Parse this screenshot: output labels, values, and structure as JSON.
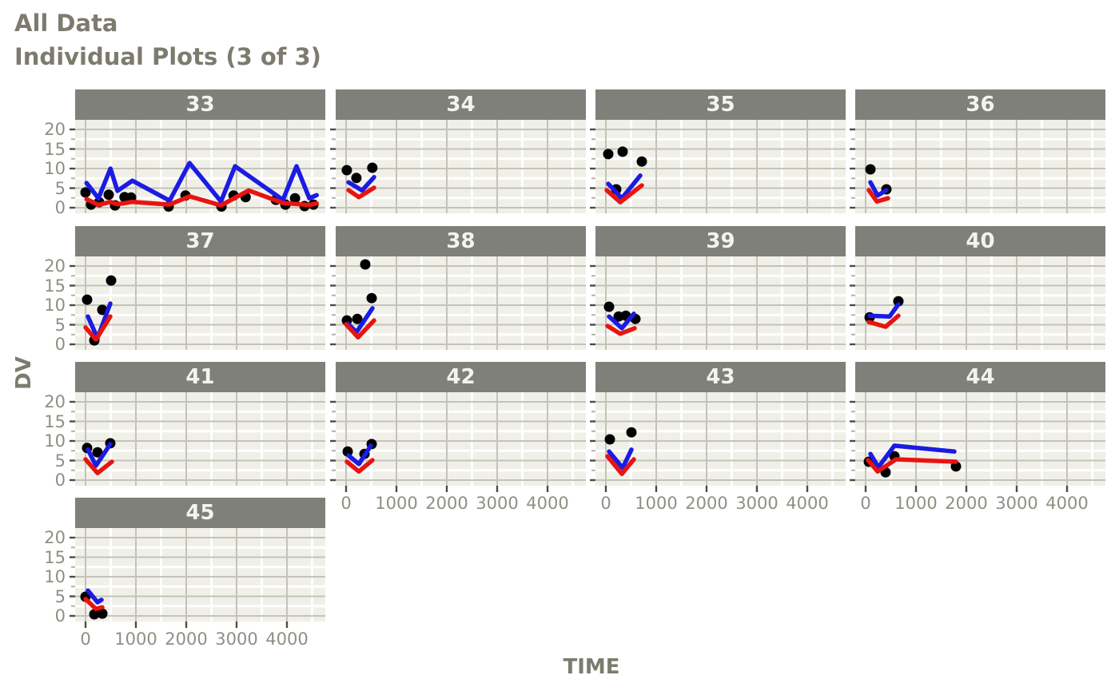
{
  "title": "All Data",
  "subtitle": "Individual Plots (3 of 3)",
  "x_axis_label": "TIME",
  "y_axis_label": "DV",
  "colors": {
    "title_text": "#7c7b6e",
    "strip_fill": "#80807a",
    "strip_text": "#f4f4ee",
    "panel_background": "#f0f0e9",
    "grid_major": "#c3c3ba",
    "grid_minor": "#ffffff",
    "tick_mark": "#4c4c45",
    "tick_label": "#8f8f85",
    "observed_points": "#000000",
    "individual_prediction_line": "#1b1be4",
    "population_prediction_line": "#e81410"
  },
  "chart_data": {
    "type": "line",
    "description": "Faceted individual plots of DV vs TIME: black dots = observed data, blue line = individual prediction, red line = population prediction",
    "xlabel": "TIME",
    "ylabel": "DV",
    "x_ticks": [
      0,
      1000,
      2000,
      3000,
      4000
    ],
    "y_ticks": [
      0,
      5,
      10,
      15,
      20
    ],
    "x_minor_ticks": [
      500,
      1500,
      2500,
      3500,
      4500
    ],
    "y_minor_ticks": [
      2.5,
      7.5,
      12.5,
      17.5
    ],
    "x_domain": [
      -206,
      4762
    ],
    "y_domain": [
      -1.43,
      22.45
    ],
    "grid": true,
    "legend": false,
    "facets": [
      {
        "id": "33",
        "obs": [
          [
            0,
            3.9
          ],
          [
            110,
            0.8
          ],
          [
            270,
            1.4
          ],
          [
            460,
            3.3
          ],
          [
            585,
            0.6
          ],
          [
            775,
            2.7
          ],
          [
            905,
            2.6
          ],
          [
            1650,
            0.3
          ],
          [
            1985,
            3.1
          ],
          [
            2700,
            0.3
          ],
          [
            2940,
            3.1
          ],
          [
            3180,
            2.7
          ],
          [
            3780,
            2.0
          ],
          [
            3970,
            0.8
          ],
          [
            4160,
            2.4
          ],
          [
            4350,
            0.4
          ],
          [
            4525,
            0.8
          ]
        ],
        "ipred": [
          [
            20,
            6.3
          ],
          [
            255,
            2.4
          ],
          [
            495,
            10.0
          ],
          [
            635,
            4.3
          ],
          [
            930,
            6.9
          ],
          [
            1670,
            1.8
          ],
          [
            2065,
            11.4
          ],
          [
            2690,
            1.6
          ],
          [
            2970,
            10.6
          ],
          [
            3920,
            2.0
          ],
          [
            4190,
            10.6
          ],
          [
            4445,
            2.4
          ],
          [
            4590,
            3.2
          ]
        ],
        "pred": [
          [
            20,
            2.2
          ],
          [
            255,
            0.7
          ],
          [
            495,
            1.5
          ],
          [
            640,
            0.9
          ],
          [
            930,
            1.5
          ],
          [
            1670,
            0.8
          ],
          [
            2065,
            2.9
          ],
          [
            2690,
            0.6
          ],
          [
            3240,
            4.4
          ],
          [
            3920,
            1.2
          ],
          [
            4445,
            0.7
          ],
          [
            4590,
            1.1
          ]
        ]
      },
      {
        "id": "34",
        "obs": [
          [
            15,
            9.6
          ],
          [
            205,
            7.6
          ],
          [
            520,
            10.2
          ]
        ],
        "ipred": [
          [
            48,
            6.5
          ],
          [
            317,
            4.4
          ],
          [
            555,
            7.8
          ]
        ],
        "pred": [
          [
            48,
            4.5
          ],
          [
            254,
            2.7
          ],
          [
            555,
            5.1
          ]
        ]
      },
      {
        "id": "35",
        "obs": [
          [
            48,
            13.7
          ],
          [
            206,
            4.7
          ],
          [
            333,
            14.3
          ],
          [
            714,
            11.8
          ]
        ],
        "ipred": [
          [
            48,
            6.1
          ],
          [
            317,
            2.4
          ],
          [
            683,
            8.2
          ]
        ],
        "pred": [
          [
            16,
            4.5
          ],
          [
            286,
            1.4
          ],
          [
            714,
            5.7
          ]
        ]
      },
      {
        "id": "36",
        "obs": [
          [
            95,
            9.8
          ],
          [
            413,
            4.7
          ]
        ],
        "ipred": [
          [
            95,
            6.5
          ],
          [
            238,
            3.1
          ],
          [
            413,
            4.5
          ]
        ],
        "pred": [
          [
            63,
            4.5
          ],
          [
            222,
            1.6
          ],
          [
            444,
            2.4
          ]
        ]
      },
      {
        "id": "37",
        "obs": [
          [
            32,
            11.4
          ],
          [
            175,
            1.0
          ],
          [
            333,
            8.8
          ],
          [
            508,
            16.3
          ]
        ],
        "ipred": [
          [
            48,
            7.1
          ],
          [
            238,
            1.6
          ],
          [
            492,
            10.4
          ]
        ],
        "pred": [
          [
            0,
            4.3
          ],
          [
            206,
            1.2
          ],
          [
            492,
            7.1
          ]
        ]
      },
      {
        "id": "38",
        "obs": [
          [
            16,
            6.1
          ],
          [
            222,
            6.5
          ],
          [
            381,
            20.4
          ],
          [
            508,
            11.8
          ]
        ],
        "ipred": [
          [
            32,
            5.3
          ],
          [
            206,
            3.1
          ],
          [
            524,
            9.2
          ]
        ],
        "pred": [
          [
            0,
            5.1
          ],
          [
            238,
            1.8
          ],
          [
            556,
            6.1
          ]
        ]
      },
      {
        "id": "39",
        "obs": [
          [
            63,
            9.6
          ],
          [
            254,
            7.1
          ],
          [
            397,
            7.3
          ],
          [
            587,
            6.5
          ]
        ],
        "ipred": [
          [
            63,
            7.1
          ],
          [
            317,
            4.1
          ],
          [
            556,
            7.8
          ]
        ],
        "pred": [
          [
            32,
            4.7
          ],
          [
            286,
            2.7
          ],
          [
            571,
            4.1
          ]
        ]
      },
      {
        "id": "40",
        "obs": [
          [
            79,
            6.9
          ],
          [
            651,
            11.0
          ]
        ],
        "ipred": [
          [
            79,
            7.3
          ],
          [
            476,
            7.1
          ],
          [
            651,
            10.2
          ]
        ],
        "pred": [
          [
            63,
            5.7
          ],
          [
            397,
            4.5
          ],
          [
            651,
            7.3
          ]
        ]
      },
      {
        "id": "41",
        "obs": [
          [
            32,
            8.2
          ],
          [
            238,
            7.1
          ],
          [
            492,
            9.4
          ]
        ],
        "ipred": [
          [
            48,
            7.8
          ],
          [
            206,
            3.7
          ],
          [
            492,
            9.2
          ]
        ],
        "pred": [
          [
            0,
            5.3
          ],
          [
            238,
            1.8
          ],
          [
            524,
            4.7
          ]
        ]
      },
      {
        "id": "42",
        "obs": [
          [
            32,
            7.3
          ],
          [
            365,
            6.7
          ],
          [
            508,
            9.2
          ]
        ],
        "ipred": [
          [
            48,
            6.3
          ],
          [
            254,
            4.1
          ],
          [
            492,
            8.8
          ]
        ],
        "pred": [
          [
            16,
            4.7
          ],
          [
            254,
            2.2
          ],
          [
            524,
            5.1
          ]
        ]
      },
      {
        "id": "43",
        "obs": [
          [
            79,
            10.4
          ],
          [
            508,
            12.2
          ]
        ],
        "ipred": [
          [
            63,
            7.3
          ],
          [
            333,
            3.1
          ],
          [
            508,
            7.8
          ]
        ],
        "pred": [
          [
            32,
            6.1
          ],
          [
            317,
            1.6
          ],
          [
            556,
            5.3
          ]
        ]
      },
      {
        "id": "44",
        "obs": [
          [
            63,
            4.7
          ],
          [
            397,
            2.0
          ],
          [
            571,
            6.1
          ],
          [
            1794,
            3.5
          ]
        ],
        "ipred": [
          [
            95,
            6.7
          ],
          [
            254,
            3.3
          ],
          [
            571,
            8.8
          ],
          [
            1762,
            7.3
          ]
        ],
        "pred": [
          [
            48,
            5.1
          ],
          [
            238,
            2.2
          ],
          [
            603,
            5.3
          ],
          [
            1794,
            4.7
          ]
        ]
      },
      {
        "id": "45",
        "obs": [
          [
            0,
            4.9
          ],
          [
            175,
            0.4
          ],
          [
            333,
            0.6
          ]
        ],
        "ipred": [
          [
            48,
            6.5
          ],
          [
            238,
            3.5
          ],
          [
            317,
            4.1
          ]
        ],
        "pred": [
          [
            0,
            4.3
          ],
          [
            206,
            1.8
          ],
          [
            333,
            2.2
          ]
        ]
      }
    ]
  }
}
